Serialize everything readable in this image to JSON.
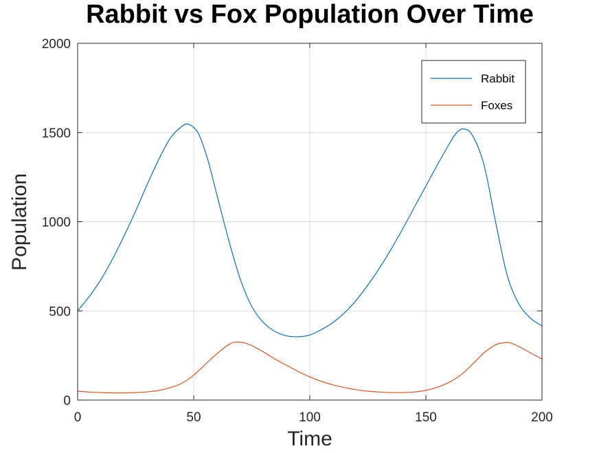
{
  "chart_data": {
    "type": "line",
    "title": "Rabbit vs Fox Population Over Time",
    "xlabel": "Time",
    "ylabel": "Population",
    "xlim": [
      0,
      200
    ],
    "ylim": [
      0,
      2000
    ],
    "xticks": [
      0,
      50,
      100,
      150,
      200
    ],
    "yticks": [
      0,
      500,
      1000,
      1500,
      2000
    ],
    "grid": true,
    "legend": "top-right",
    "series": [
      {
        "name": "Rabbit",
        "color": "#0072BD",
        "x": [
          0,
          5,
          10,
          15,
          20,
          25,
          30,
          35,
          40,
          45,
          48,
          52,
          56,
          60,
          65,
          70,
          75,
          80,
          85,
          90,
          95,
          100,
          105,
          110,
          115,
          120,
          125,
          130,
          135,
          140,
          145,
          150,
          155,
          160,
          163,
          166,
          170,
          175,
          180,
          185,
          190,
          195,
          200
        ],
        "y": [
          500,
          580,
          675,
          790,
          920,
          1060,
          1210,
          1350,
          1470,
          1535,
          1545,
          1495,
          1350,
          1150,
          900,
          680,
          525,
          435,
          385,
          360,
          355,
          365,
          395,
          435,
          490,
          560,
          645,
          740,
          845,
          960,
          1080,
          1200,
          1320,
          1435,
          1495,
          1520,
          1485,
          1320,
          1000,
          700,
          540,
          460,
          415
        ]
      },
      {
        "name": "Foxes",
        "color": "#D95319",
        "x": [
          0,
          5,
          10,
          15,
          20,
          25,
          30,
          35,
          40,
          45,
          50,
          55,
          60,
          65,
          68,
          72,
          75,
          80,
          85,
          90,
          95,
          100,
          105,
          110,
          115,
          120,
          125,
          130,
          135,
          140,
          145,
          150,
          155,
          160,
          165,
          170,
          175,
          180,
          183,
          186,
          190,
          195,
          200
        ],
        "y": [
          50,
          45,
          42,
          40,
          40,
          42,
          46,
          54,
          70,
          95,
          140,
          200,
          260,
          310,
          325,
          320,
          305,
          270,
          230,
          195,
          160,
          130,
          105,
          85,
          70,
          58,
          50,
          45,
          42,
          42,
          45,
          55,
          72,
          100,
          140,
          200,
          265,
          310,
          320,
          322,
          300,
          265,
          230
        ]
      }
    ]
  }
}
